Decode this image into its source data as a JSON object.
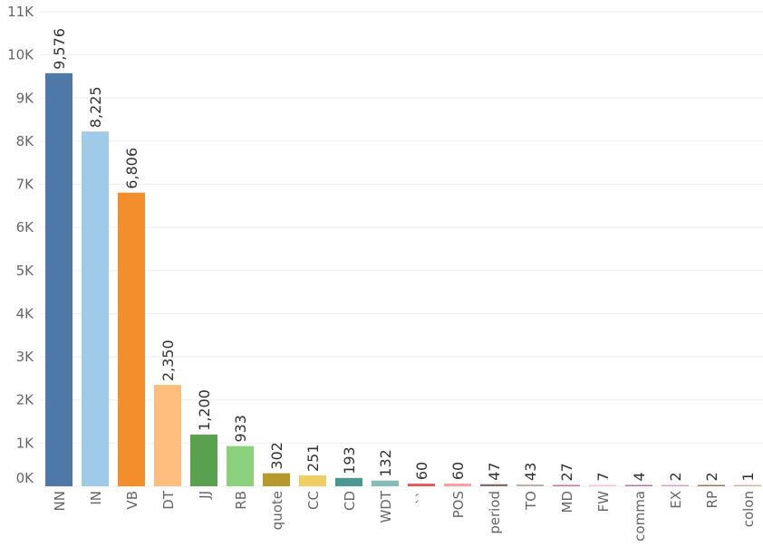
{
  "chart_data": {
    "type": "bar",
    "title": "",
    "xlabel": "",
    "ylabel": "",
    "ylim": [
      0,
      11000
    ],
    "grid": true,
    "legend": "none",
    "y_ticks": [
      0,
      1000,
      2000,
      3000,
      4000,
      5000,
      6000,
      7000,
      8000,
      9000,
      10000,
      11000
    ],
    "y_tick_labels": [
      "0K",
      "1K",
      "2K",
      "3K",
      "4K",
      "5K",
      "6K",
      "7K",
      "8K",
      "9K",
      "10K",
      "11K"
    ],
    "categories": [
      "NN",
      "IN",
      "VB",
      "DT",
      "JJ",
      "RB",
      "quote",
      "CC",
      "CD",
      "WDT",
      "``",
      "POS",
      "period",
      "TO",
      "MD",
      "FW",
      "comma",
      "EX",
      "RP",
      "colon"
    ],
    "values": [
      9576,
      8225,
      6806,
      2350,
      1200,
      933,
      302,
      251,
      193,
      132,
      60,
      60,
      47,
      43,
      27,
      7,
      4,
      2,
      2,
      1
    ],
    "value_labels": [
      "9,576",
      "8,225",
      "6,806",
      "2,350",
      "1,200",
      "933",
      "302",
      "251",
      "193",
      "132",
      "60",
      "60",
      "47",
      "43",
      "27",
      "7",
      "4",
      "2",
      "2",
      "1"
    ],
    "colors": [
      "#4e79a7",
      "#a0cbe8",
      "#f28e2b",
      "#ffbe7d",
      "#59a14f",
      "#8cd17d",
      "#b6992d",
      "#f1ce63",
      "#499894",
      "#86bcb6",
      "#e15759",
      "#ff9d9a",
      "#79706e",
      "#bab0ac",
      "#d37295",
      "#fabfd2",
      "#b07aa1",
      "#d4a6c8",
      "#9d7660",
      "#d7b5a6"
    ]
  }
}
